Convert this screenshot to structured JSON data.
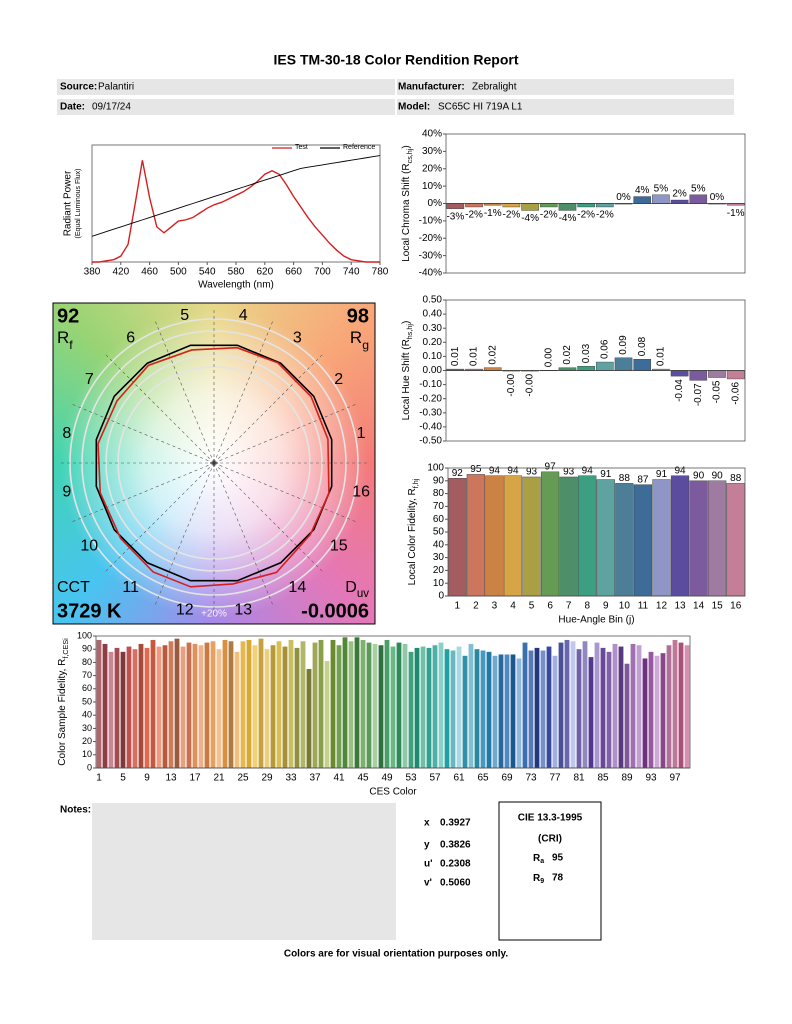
{
  "header": {
    "title": "IES TM-30-18 Color Rendition Report",
    "source_label": "Source:",
    "source": "Palantiri",
    "manufacturer_label": "Manufacturer:",
    "manufacturer": "Zebralight",
    "date_label": "Date:",
    "date": "09/17/24",
    "model_label": "Model:",
    "model": "SC65C HI 719A L1"
  },
  "chart_data": [
    {
      "type": "line",
      "x_label": "Wavelength (nm)",
      "y_label": "Radiant Power",
      "y_label_sub": "(Equal Luminous Flux)",
      "legend": "upper right",
      "x": [
        380,
        390,
        400,
        410,
        420,
        430,
        440,
        450,
        460,
        470,
        480,
        490,
        500,
        510,
        520,
        530,
        540,
        550,
        560,
        570,
        580,
        590,
        600,
        610,
        620,
        630,
        640,
        650,
        660,
        670,
        680,
        690,
        700,
        710,
        720,
        730,
        740,
        750,
        760,
        770,
        780
      ],
      "xlim": [
        380,
        780
      ],
      "xticks": [
        380,
        420,
        460,
        500,
        540,
        580,
        620,
        660,
        700,
        740,
        780
      ],
      "ylim": [
        0,
        1
      ],
      "series": [
        {
          "name": "Test",
          "color": "#d42020",
          "values": [
            0,
            0,
            0.01,
            0.02,
            0.05,
            0.15,
            0.5,
            0.87,
            0.55,
            0.3,
            0.25,
            0.3,
            0.35,
            0.36,
            0.38,
            0.42,
            0.46,
            0.49,
            0.51,
            0.54,
            0.57,
            0.6,
            0.64,
            0.69,
            0.75,
            0.78,
            0.75,
            0.66,
            0.56,
            0.47,
            0.38,
            0.3,
            0.23,
            0.16,
            0.1,
            0.05,
            0.02,
            0.01,
            0,
            0,
            0
          ]
        },
        {
          "name": "Reference",
          "color": "#000000",
          "values": [
            0.22,
            0.24,
            0.26,
            0.28,
            0.3,
            0.32,
            0.34,
            0.36,
            0.38,
            0.4,
            0.42,
            0.44,
            0.46,
            0.48,
            0.5,
            0.52,
            0.54,
            0.56,
            0.58,
            0.6,
            0.62,
            0.64,
            0.66,
            0.68,
            0.7,
            0.72,
            0.74,
            0.76,
            0.78,
            0.8,
            0.81,
            0.82,
            0.83,
            0.84,
            0.85,
            0.86,
            0.87,
            0.88,
            0.89,
            0.9,
            0.91
          ]
        }
      ]
    },
    {
      "type": "bar",
      "y_label": "Local Chroma Shift (R",
      "y_label_sub": "cs,hj",
      "y_label_end": ")",
      "values": [
        -3,
        -2,
        -1,
        -2,
        -4,
        -2,
        -4,
        -2,
        -2,
        0,
        4,
        5,
        2,
        5,
        0,
        -1
      ],
      "value_labels": [
        "-3%",
        "-2%",
        "-1%",
        "-2%",
        "-4%",
        "-2%",
        "-4%",
        "-2%",
        "-2%",
        "0%",
        "4%",
        "5%",
        "2%",
        "5%",
        "0%",
        "-1%"
      ],
      "colors": [
        "#a35c60",
        "#cc765e",
        "#cc8145",
        "#d8a546",
        "#a9a044",
        "#669b55",
        "#4e8f6a",
        "#3c9f82",
        "#5fa3a0",
        "#4d7e98",
        "#3e6c98",
        "#8d96c4",
        "#5c4c9f",
        "#7b5b9e",
        "#a07ba1",
        "#c47e98"
      ],
      "ylim": [
        -40,
        40
      ],
      "yticks": [
        {
          "value": -40,
          "label": "-40%"
        },
        {
          "value": -30,
          "label": "-30%"
        },
        {
          "value": -20,
          "label": "-20%"
        },
        {
          "value": -10,
          "label": "-10%"
        },
        {
          "value": 0,
          "label": "0%"
        },
        {
          "value": 10,
          "label": "10%"
        },
        {
          "value": 20,
          "label": "20%"
        },
        {
          "value": 30,
          "label": "30%"
        },
        {
          "value": 40,
          "label": "40%"
        }
      ]
    },
    {
      "type": "bar",
      "y_label": "Local Hue Shift (R",
      "y_label_sub": "hs,hj",
      "y_label_end": ")",
      "values": [
        0.01,
        0.01,
        0.02,
        -0.002,
        -0.002,
        0.002,
        0.02,
        0.03,
        0.06,
        0.09,
        0.08,
        0.01,
        -0.04,
        -0.07,
        -0.05,
        -0.06
      ],
      "value_labels": [
        "0.01",
        "0.01",
        "0.02",
        "-0.00",
        "-0.00",
        "0.00",
        "0.02",
        "0.03",
        "0.06",
        "0.09",
        "0.08",
        "0.01",
        "-0.04",
        "-0.07",
        "-0.05",
        "-0.06"
      ],
      "colors": [
        "#a35c60",
        "#cc765e",
        "#cc8145",
        "#d8a546",
        "#a9a044",
        "#669b55",
        "#4e8f6a",
        "#3c9f82",
        "#5fa3a0",
        "#4d7e98",
        "#3e6c98",
        "#8d96c4",
        "#5c4c9f",
        "#7b5b9e",
        "#a07ba1",
        "#c47e98"
      ],
      "ylim": [
        -0.5,
        0.5
      ],
      "yticks": [
        {
          "value": -0.5,
          "label": "-0.50"
        },
        {
          "value": -0.4,
          "label": "-0.40"
        },
        {
          "value": -0.3,
          "label": "-0.30"
        },
        {
          "value": -0.2,
          "label": "-0.20"
        },
        {
          "value": -0.1,
          "label": "-0.10"
        },
        {
          "value": 0,
          "label": "0.00"
        },
        {
          "value": 0.1,
          "label": "0.10"
        },
        {
          "value": 0.2,
          "label": "0.20"
        },
        {
          "value": 0.3,
          "label": "0.30"
        },
        {
          "value": 0.4,
          "label": "0.40"
        },
        {
          "value": 0.5,
          "label": "0.50"
        }
      ]
    },
    {
      "type": "vector",
      "rf": 92,
      "rf_symbol": "R",
      "rf_sub": "f",
      "rg": 98,
      "rg_symbol": "R",
      "rg_sub": "g",
      "cct_label": "CCT",
      "cct": {
        "value": 3729,
        "label": "3729 K"
      },
      "duv_symbol": "D",
      "duv_sub": "uv",
      "duv": -0.0006,
      "ring_label": "+20%",
      "bins": [
        "1",
        "2",
        "3",
        "4",
        "5",
        "6",
        "7",
        "8",
        "9",
        "10",
        "11",
        "12",
        "13",
        "14",
        "15",
        "16"
      ]
    },
    {
      "type": "bar",
      "x_label": "Hue-Angle Bin (j)",
      "y_label": "Local Color Fidelity, R",
      "y_label_sub": "f,hj",
      "show_value_labels": true,
      "categories": [
        "1",
        "2",
        "3",
        "4",
        "5",
        "6",
        "7",
        "8",
        "9",
        "10",
        "11",
        "12",
        "13",
        "14",
        "15",
        "16"
      ],
      "values": [
        92,
        95,
        94,
        94,
        93,
        97,
        93,
        94,
        91,
        88,
        87,
        91,
        94,
        90,
        90,
        88
      ],
      "colors": [
        "#a35c60",
        "#cc765e",
        "#cc8145",
        "#d8a546",
        "#a9a044",
        "#669b55",
        "#4e8f6a",
        "#3c9f82",
        "#5fa3a0",
        "#4d7e98",
        "#3e6c98",
        "#8d96c4",
        "#5c4c9f",
        "#7b5b9e",
        "#a07ba1",
        "#c47e98"
      ],
      "ylim": [
        0,
        100
      ],
      "yticks": [
        0,
        10,
        20,
        30,
        40,
        50,
        60,
        70,
        80,
        90,
        100
      ]
    },
    {
      "type": "bar",
      "x_label": "CES Color",
      "y_label": "Color Sample Fidelity, R",
      "y_label_sub": "f,CESi",
      "categories": [
        "1",
        null,
        null,
        null,
        "5",
        null,
        null,
        null,
        "9",
        null,
        null,
        null,
        "13",
        null,
        null,
        null,
        "17",
        null,
        null,
        null,
        "21",
        null,
        null,
        null,
        "25",
        null,
        null,
        null,
        "29",
        null,
        null,
        null,
        "33",
        null,
        null,
        null,
        "37",
        null,
        null,
        null,
        "41",
        null,
        null,
        null,
        "45",
        null,
        null,
        null,
        "49",
        null,
        null,
        null,
        "53",
        null,
        null,
        null,
        "57",
        null,
        null,
        null,
        "61",
        null,
        null,
        null,
        "65",
        null,
        null,
        null,
        "69",
        null,
        null,
        null,
        "73",
        null,
        null,
        null,
        "77",
        null,
        null,
        null,
        "81",
        null,
        null,
        null,
        "85",
        null,
        null,
        null,
        "89",
        null,
        null,
        null,
        "93",
        null,
        null,
        null,
        "97",
        null,
        null
      ],
      "values": [
        97,
        94,
        88,
        91,
        88,
        92,
        90,
        94,
        91,
        97,
        92,
        93,
        96,
        98,
        92,
        95,
        94,
        93,
        95,
        96,
        90,
        97,
        96,
        88,
        96,
        97,
        93,
        98,
        90,
        93,
        96,
        92,
        97,
        91,
        96,
        75,
        95,
        97,
        81,
        97,
        93,
        99,
        96,
        99,
        97,
        95,
        94,
        93,
        97,
        92,
        95,
        94,
        88,
        91,
        92,
        91,
        93,
        95,
        90,
        89,
        92,
        85,
        94,
        90,
        89,
        88,
        85,
        86,
        86,
        86,
        83,
        95,
        89,
        91,
        89,
        92,
        85,
        95,
        97,
        96,
        90,
        96,
        84,
        95,
        91,
        88,
        94,
        92,
        79,
        94,
        93,
        83,
        88,
        85,
        87,
        93,
        97,
        95,
        93
      ],
      "colors": [
        "#b0646c",
        "#8e3d45",
        "#c88792",
        "#a44b4f",
        "#7c3a3d",
        "#c05050",
        "#d87060",
        "#a84a3a",
        "#e06a50",
        "#c65a3e",
        "#f09a80",
        "#b85a3c",
        "#d07a58",
        "#9a5a40",
        "#e8a080",
        "#c87050",
        "#e0905a",
        "#f0b088",
        "#c87a40",
        "#e8a060",
        "#f4c090",
        "#d89040",
        "#b07a40",
        "#f0c080",
        "#e8b850",
        "#d8a830",
        "#f4d070",
        "#c8a040",
        "#e8d080",
        "#b89838",
        "#d8c050",
        "#a89038",
        "#c8c060",
        "#909040",
        "#b0b868",
        "#787830",
        "#a0a858",
        "#88a048",
        "#c8d090",
        "#6a8a30",
        "#70a050",
        "#508838",
        "#98c080",
        "#3a7a38",
        "#80b070",
        "#5a9a58",
        "#a8d0a0",
        "#2e7040",
        "#48a068",
        "#68b888",
        "#2a8a58",
        "#90c8a8",
        "#40a080",
        "#1e8a70",
        "#70c0a8",
        "#30a090",
        "#50b0a8",
        "#88d0c8",
        "#20a0a0",
        "#68b8c0",
        "#a8d8e0",
        "#3090a8",
        "#80c0d0",
        "#2888a0",
        "#4898c0",
        "#1e78a8",
        "#70a8d0",
        "#2868a0",
        "#5088c0",
        "#1a5890",
        "#90b8e0",
        "#3870b0",
        "#5878b8",
        "#203880",
        "#7890c8",
        "#3848a0",
        "#a0b0e0",
        "#485098",
        "#6868b0",
        "#c0c8f0",
        "#7060a8",
        "#9088c0",
        "#503890",
        "#a898d0",
        "#6a4898",
        "#8060a8",
        "#b090c8",
        "#583880",
        "#805898",
        "#a070b0",
        "#c0a0d0",
        "#703080",
        "#9858a0",
        "#d0a8d8",
        "#884888",
        "#b07098",
        "#c07898",
        "#a85078",
        "#d890b0"
      ],
      "ylim": [
        0,
        100
      ],
      "yticks": [
        0,
        10,
        20,
        30,
        40,
        50,
        60,
        70,
        80,
        90,
        100
      ]
    }
  ],
  "notes": {
    "label": "Notes:",
    "chromaticity": [
      {
        "label": "x",
        "value": "0.3927"
      },
      {
        "label": "y",
        "value": "0.3826"
      },
      {
        "label": "u'",
        "value": "0.2308"
      },
      {
        "label": "v'",
        "value": "0.5060"
      }
    ],
    "cri": {
      "title": "CIE 13.3-1995",
      "subtitle": "(CRI)",
      "ra_symbol": "R",
      "ra_sub": "a",
      "ra": 95,
      "r9_symbol": "R",
      "r9_sub": "9",
      "r9": 78
    }
  },
  "footer": "Colors are for visual orientation purposes only."
}
